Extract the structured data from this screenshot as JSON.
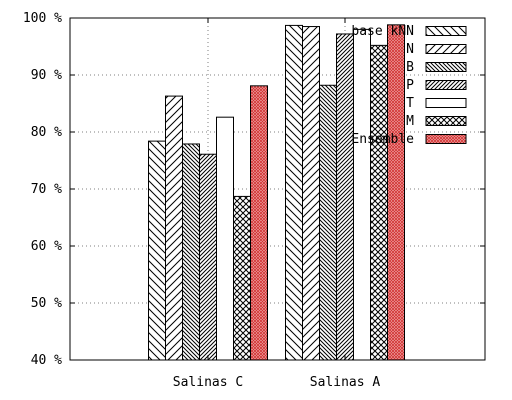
{
  "chart_data": {
    "type": "bar",
    "categories": [
      "Salinas C",
      "Salinas A"
    ],
    "series": [
      {
        "name": "base kNN",
        "pattern": "diag-back",
        "values": [
          78.4,
          98.7
        ]
      },
      {
        "name": "N",
        "pattern": "diag-fwd",
        "values": [
          86.3,
          98.5
        ]
      },
      {
        "name": "B",
        "pattern": "dense-back",
        "values": [
          77.9,
          88.2
        ]
      },
      {
        "name": "P",
        "pattern": "dense-fwd",
        "values": [
          76.1,
          97.2
        ]
      },
      {
        "name": "T",
        "pattern": "empty",
        "values": [
          82.6,
          98.0
        ]
      },
      {
        "name": "M",
        "pattern": "crosshatch",
        "values": [
          68.7,
          95.2
        ]
      },
      {
        "name": "Ensemble",
        "pattern": "red-grid",
        "values": [
          88.1,
          98.8
        ]
      }
    ],
    "ylim": [
      40,
      100
    ],
    "yticks": [
      "40 %",
      "50 %",
      "60 %",
      "70 %",
      "80 %",
      "90 %",
      "100 %"
    ],
    "grid": true,
    "legend_position": "top-right",
    "accent_color": "#e06060"
  }
}
